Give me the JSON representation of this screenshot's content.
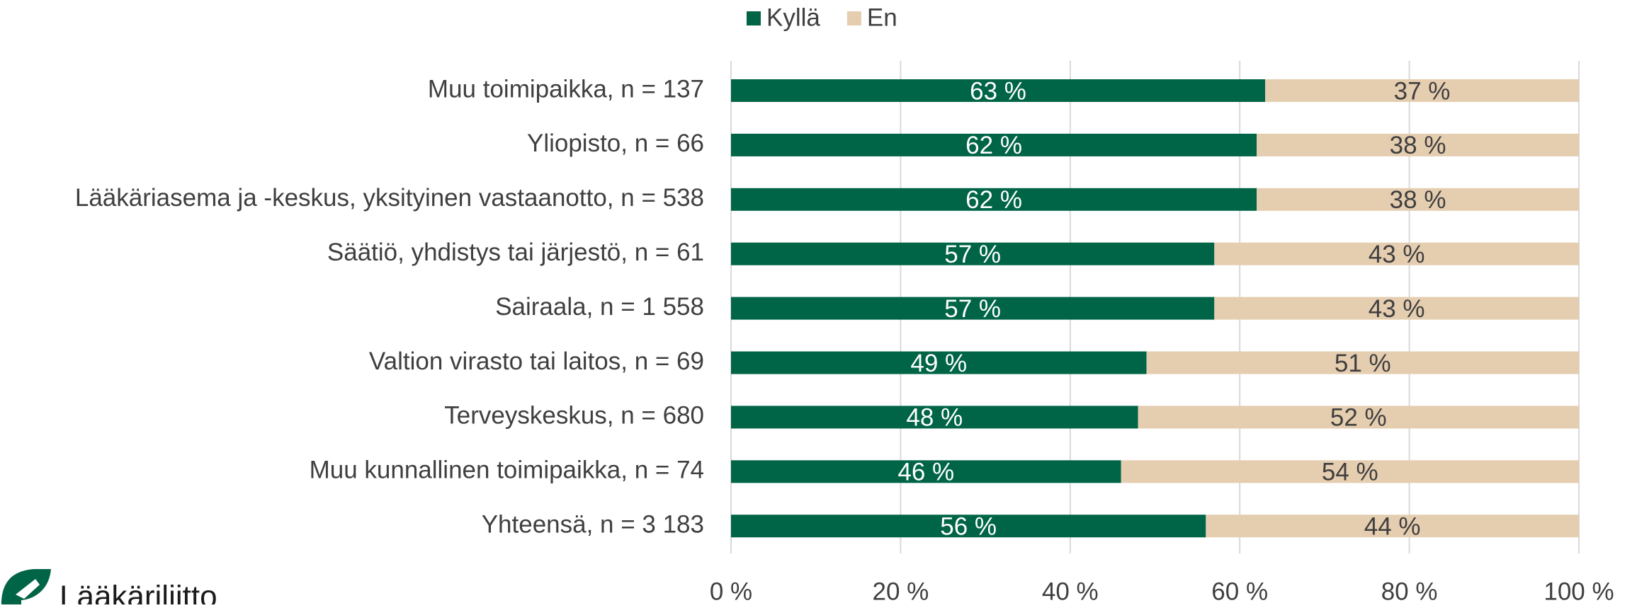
{
  "chart_data": {
    "type": "stacked_barh",
    "categories": [
      "Muu toimipaikka, n = 137",
      "Yliopisto, n = 66",
      "Lääkäriasema ja -keskus, yksityinen vastaanotto, n = 538",
      "Säätiö, yhdistys tai järjestö, n = 61",
      "Sairaala, n = 1 558",
      "Valtion virasto tai laitos, n = 69",
      "Terveyskeskus, n = 680",
      "Muu kunnallinen toimipaikka, n = 74",
      "Yhteensä, n = 3 183"
    ],
    "series": [
      {
        "name": "Kyllä",
        "color": "#006446",
        "values": [
          63,
          62,
          62,
          57,
          57,
          49,
          48,
          46,
          56
        ],
        "value_labels": [
          "63 %",
          "62 %",
          "62 %",
          "57 %",
          "57 %",
          "49 %",
          "48 %",
          "46 %",
          "56 %"
        ]
      },
      {
        "name": "En",
        "color": "#e5cdb0",
        "values": [
          37,
          38,
          38,
          43,
          43,
          51,
          52,
          54,
          44
        ],
        "value_labels": [
          "37 %",
          "38 %",
          "38 %",
          "43 %",
          "43 %",
          "51 %",
          "52 %",
          "54 %",
          "44 %"
        ]
      }
    ],
    "xlim": [
      0,
      100
    ],
    "xticks": [
      {
        "value": 0,
        "label": "0 %"
      },
      {
        "value": 20,
        "label": "20 %"
      },
      {
        "value": 40,
        "label": "40 %"
      },
      {
        "value": 60,
        "label": "60 %"
      },
      {
        "value": 80,
        "label": "80 %"
      },
      {
        "value": 100,
        "label": "100 %"
      }
    ],
    "grid": true,
    "legend": "top"
  },
  "logo": {
    "text": "Lääkäriliitto"
  }
}
